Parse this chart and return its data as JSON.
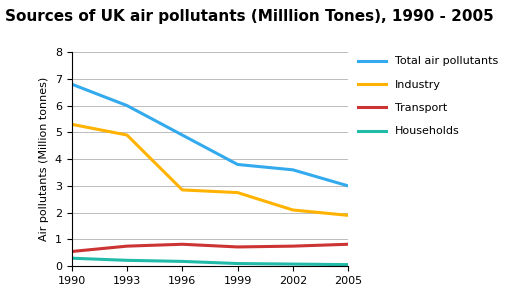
{
  "title": "Sources of UK air pollutants (Milllion Tones), 1990 - 2005",
  "ylabel": "Air pollutants (Million tonnes)",
  "years": [
    1990,
    1993,
    1996,
    1999,
    2002,
    2005
  ],
  "series": {
    "Total air pollutants": {
      "values": [
        6.8,
        6.0,
        4.9,
        3.8,
        3.6,
        3.0
      ],
      "color": "#33AAEE",
      "linewidth": 2.2
    },
    "Industry": {
      "values": [
        5.3,
        4.9,
        2.85,
        2.75,
        2.1,
        1.9
      ],
      "color": "#FFB300",
      "linewidth": 2.2
    },
    "Transport": {
      "values": [
        0.55,
        0.75,
        0.82,
        0.72,
        0.75,
        0.82
      ],
      "color": "#CC3333",
      "linewidth": 2.2
    },
    "Households": {
      "values": [
        0.3,
        0.22,
        0.18,
        0.1,
        0.08,
        0.06
      ],
      "color": "#22BBAA",
      "linewidth": 2.2
    }
  },
  "ylim": [
    0,
    8
  ],
  "yticks": [
    0,
    1,
    2,
    3,
    4,
    5,
    6,
    7,
    8
  ],
  "xticks": [
    1990,
    1993,
    1996,
    1999,
    2002,
    2005
  ],
  "title_fontsize": 11,
  "axis_label_fontsize": 8,
  "tick_fontsize": 8,
  "legend_fontsize": 8,
  "background_color": "#FFFFFF",
  "plot_bg_color": "#FFFFFF",
  "grid_color": "#BBBBBB"
}
